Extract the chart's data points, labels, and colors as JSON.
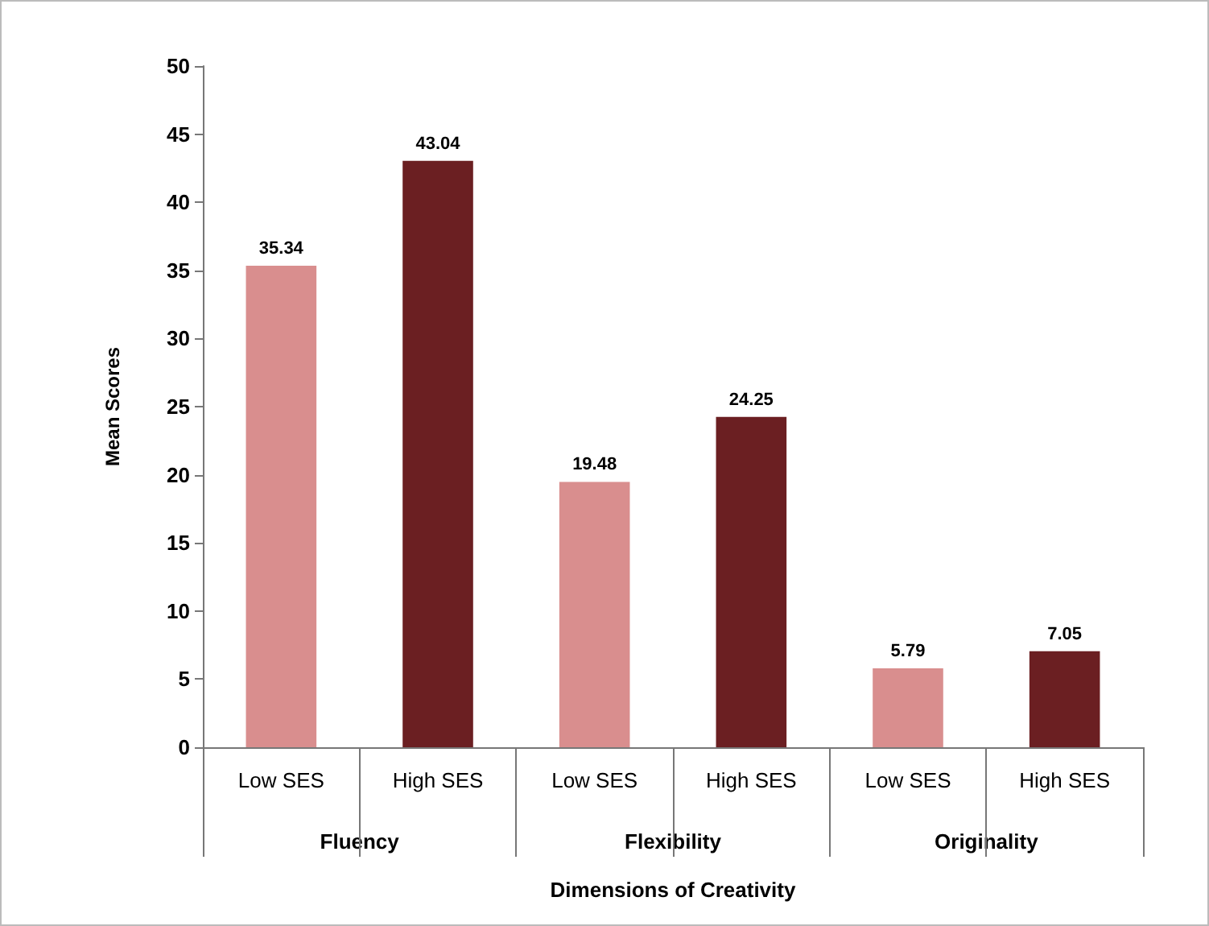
{
  "chart_data": {
    "type": "bar",
    "xlabel": "Dimensions of Creativity",
    "ylabel": "Mean Scores",
    "categories": [
      "Low SES",
      "High SES",
      "Low SES",
      "High SES",
      "Low SES",
      "High SES"
    ],
    "values": [
      35.34,
      43.04,
      19.48,
      24.25,
      5.79,
      7.05
    ],
    "colors": [
      "#d98e8e",
      "#6b1f22",
      "#d98e8e",
      "#6b1f22",
      "#d98e8e",
      "#6b1f22"
    ],
    "ylim": [
      0,
      50
    ],
    "yticks": [
      0,
      5,
      10,
      15,
      20,
      25,
      30,
      35,
      40,
      45,
      50
    ],
    "data_labels": true,
    "grid": false,
    "annotations": [
      "Fluency",
      "Flexibility",
      "Originality"
    ]
  }
}
